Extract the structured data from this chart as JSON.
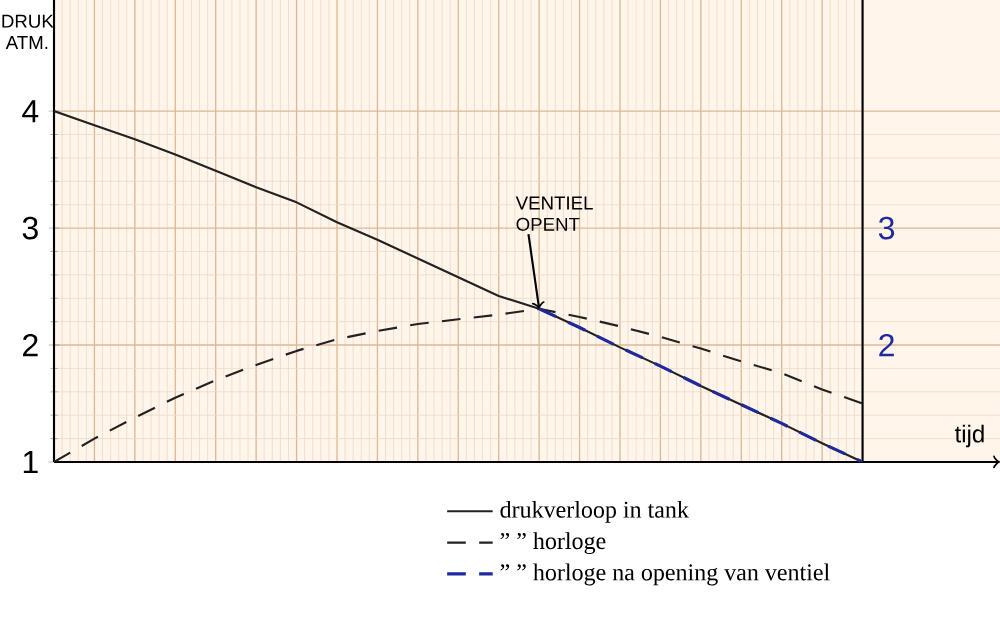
{
  "chart_data": {
    "type": "line",
    "ylabel": "DRUK ATM.",
    "xlabel": "tijd",
    "categories": [
      null,
      null,
      null,
      null,
      null,
      null,
      null,
      null,
      null,
      null,
      null,
      null,
      null,
      null,
      null,
      null,
      null,
      null,
      null,
      null,
      null
    ],
    "ylim": [
      1,
      4.95
    ],
    "yticks": [
      1,
      2,
      3,
      4
    ],
    "y2lim": [
      1,
      4.95
    ],
    "y2ticks": [
      2,
      3
    ],
    "tick_labels": "y",
    "grid": true,
    "legend": "bottom",
    "marker": "none",
    "annotations": [
      "VENTIEL OPENT"
    ],
    "series": [
      {
        "name": "drukverloop in tank",
        "color": "#222222",
        "line_style": "solid",
        "values": [
          4.0,
          3.88,
          3.76,
          3.63,
          3.49,
          3.35,
          3.22,
          3.05,
          2.9,
          2.74,
          2.58,
          2.42,
          2.31,
          2.15,
          1.98,
          1.82,
          1.65,
          1.49,
          1.33,
          1.16,
          1.0
        ]
      },
      {
        "name": "” ” horloge",
        "color": "#222222",
        "line_style": "dashed",
        "values": [
          1.0,
          1.2,
          1.38,
          1.55,
          1.7,
          1.83,
          1.95,
          2.05,
          2.12,
          2.18,
          2.22,
          2.26,
          2.31,
          2.24,
          2.16,
          2.07,
          1.97,
          1.86,
          1.76,
          1.62,
          1.5
        ]
      },
      {
        "name": "” ” horloge na opening van ventiel",
        "color": "#1f2a9e",
        "line_style": "dashed",
        "axis": "y2",
        "values": [
          null,
          null,
          null,
          null,
          null,
          null,
          null,
          null,
          null,
          null,
          null,
          null,
          2.31,
          2.15,
          1.98,
          1.82,
          1.65,
          1.49,
          1.33,
          1.16,
          1.0
        ]
      }
    ]
  }
}
